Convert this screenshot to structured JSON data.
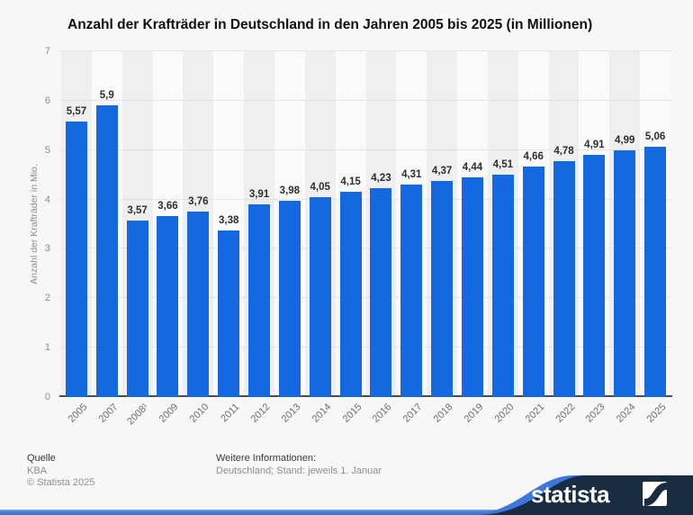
{
  "title": "Anzahl der Krafträder in Deutschland in den Jahren 2005 bis 2025 (in Millionen)",
  "chart_data": {
    "type": "bar",
    "title": "Anzahl der Krafträder in Deutschland in den Jahren 2005 bis 2025 (in Millionen)",
    "categories": [
      "2005",
      "2007",
      "2008¹",
      "2009",
      "2010",
      "2011",
      "2012",
      "2013",
      "2014",
      "2015",
      "2016",
      "2017",
      "2018",
      "2019",
      "2020",
      "2021",
      "2022",
      "2023",
      "2024",
      "2025"
    ],
    "values": [
      5.57,
      5.9,
      3.57,
      3.66,
      3.76,
      3.38,
      3.91,
      3.98,
      4.05,
      4.15,
      4.23,
      4.31,
      4.37,
      4.44,
      4.51,
      4.66,
      4.78,
      4.91,
      4.99,
      5.06
    ],
    "value_labels": [
      "5,57",
      "5,9",
      "3,57",
      "3,66",
      "3,76",
      "3,38",
      "3,91",
      "3,98",
      "4,05",
      "4,15",
      "4,23",
      "4,31",
      "4,37",
      "4,44",
      "4,51",
      "4,66",
      "4,78",
      "4,91",
      "4,99",
      "5,06"
    ],
    "xlabel": "",
    "ylabel": "Anzahl der Krafträder in Mio.",
    "ylim": [
      0,
      7
    ],
    "yticks": [
      0,
      1,
      2,
      3,
      4,
      5,
      6,
      7
    ],
    "grid": true,
    "legend": false,
    "bar_color": "#1569e0"
  },
  "footer": {
    "source_label": "Quelle",
    "source_value": "KBA",
    "copyright": "© Statista 2025",
    "info_label": "Weitere Informationen:",
    "info_value": "Deutschland; Stand: jeweils 1. Januar"
  },
  "branding": {
    "logo_text": "statista"
  },
  "colors": {
    "bar_blue": "#1569e0",
    "banner_navy": "#182c42",
    "accent_blue": "#3d77dc",
    "page_bg": "#f7f7f7"
  }
}
